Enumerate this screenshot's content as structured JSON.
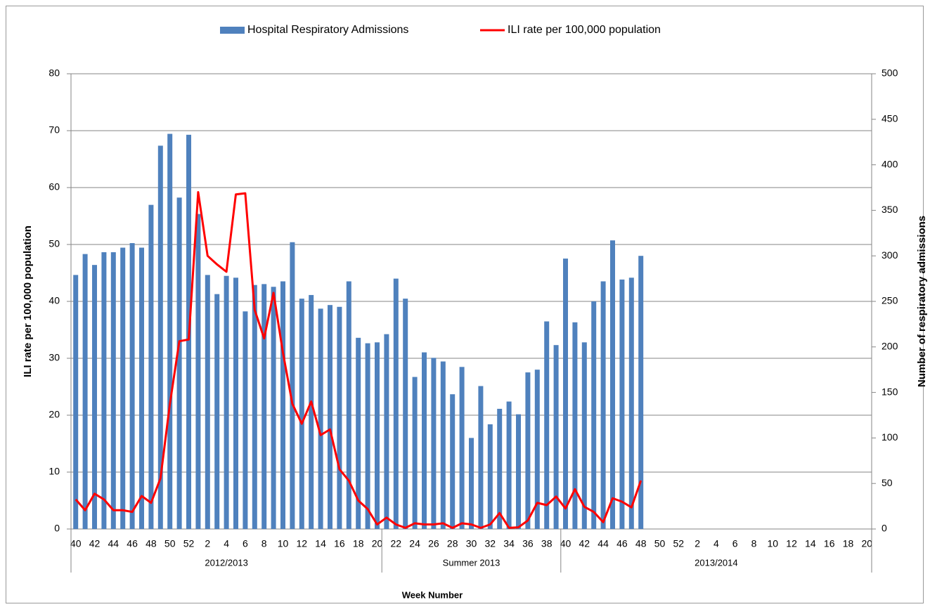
{
  "chart_data": {
    "type": "bar",
    "xlabel": "Week Number",
    "ylabel": "ILI rate per 100,000  population",
    "y2label": "Number of respiratory admissions",
    "categories": [
      "40",
      null,
      "42",
      null,
      "44",
      null,
      "46",
      null,
      "48",
      null,
      "50",
      null,
      "52",
      null,
      "2",
      null,
      "4",
      null,
      "6",
      null,
      "8",
      null,
      "10",
      null,
      "12",
      null,
      "14",
      null,
      "16",
      null,
      "18",
      null,
      "20",
      null,
      "22",
      null,
      "24",
      null,
      "26",
      null,
      "28",
      null,
      "30",
      null,
      "32",
      null,
      "34",
      null,
      "36",
      null,
      "38",
      null,
      "40",
      null,
      "42",
      null,
      "44",
      null,
      "46",
      null,
      "48",
      null,
      "50",
      null,
      "52",
      null,
      "2",
      null,
      "4",
      null,
      "6",
      null,
      "8",
      null,
      "10",
      null,
      "12",
      null,
      "14",
      null,
      "16",
      null,
      "18",
      null,
      "20"
    ],
    "category_groups": [
      {
        "label": "2012/2013",
        "span": 33
      },
      {
        "label": "Summer 2013",
        "span": 19
      },
      {
        "label": "2013/2014",
        "span": 33
      }
    ],
    "series": [
      {
        "name": "Hospital Respiratory Admissions",
        "type": "bar",
        "axis": "y2",
        "color": "#4f81bd",
        "values": [
          279,
          302,
          290,
          304,
          304,
          309,
          314,
          309,
          356,
          421,
          434,
          364,
          433,
          346,
          279,
          258,
          278,
          276,
          239,
          268,
          269,
          266,
          272,
          315,
          253,
          257,
          242,
          246,
          244,
          272,
          210,
          204,
          205,
          214,
          275,
          253,
          167,
          194,
          188,
          184,
          148,
          178,
          100,
          157,
          115,
          132,
          140,
          126,
          172,
          175,
          228,
          202,
          297,
          227,
          205,
          250,
          272,
          317,
          274,
          276,
          300,
          null,
          null,
          null,
          null,
          null,
          null,
          null,
          null,
          null,
          null,
          null,
          null,
          null,
          null,
          null,
          null,
          null,
          null,
          null,
          null,
          null,
          null,
          null,
          null
        ]
      },
      {
        "name": "ILI rate per 100,000 population",
        "type": "line",
        "color": "#ff0000",
        "values": [
          5.2,
          3.3,
          6.2,
          5.2,
          3.3,
          3.3,
          3.0,
          5.8,
          4.6,
          8.9,
          22,
          33,
          33.3,
          59.2,
          48,
          46.5,
          45.2,
          58.8,
          59,
          38.5,
          33.5,
          41.5,
          31,
          22,
          18.5,
          22.4,
          16.5,
          17.5,
          10.5,
          8.5,
          5,
          3.5,
          0.8,
          2,
          0.8,
          0.2,
          1,
          0.8,
          0.8,
          1,
          0.2,
          1,
          0.8,
          0.2,
          0.8,
          2.8,
          0.2,
          0.3,
          1.5,
          4.6,
          4.2,
          5.7,
          3.6,
          7,
          3.9,
          3,
          1.2,
          5.4,
          4.8,
          3.8,
          8.5,
          null,
          null,
          null,
          null,
          null,
          null,
          null,
          null,
          null,
          null,
          null,
          null,
          null,
          null,
          null,
          null,
          null,
          null,
          null,
          null,
          null,
          null,
          null,
          null
        ]
      }
    ],
    "ylim": [
      0,
      80
    ],
    "yticks": [
      0,
      10,
      20,
      30,
      40,
      50,
      60,
      70,
      80
    ],
    "y2lim": [
      0,
      500
    ],
    "y2ticks": [
      0,
      50,
      100,
      150,
      200,
      250,
      300,
      350,
      400,
      450,
      500
    ],
    "grid": true,
    "legend": "top"
  }
}
